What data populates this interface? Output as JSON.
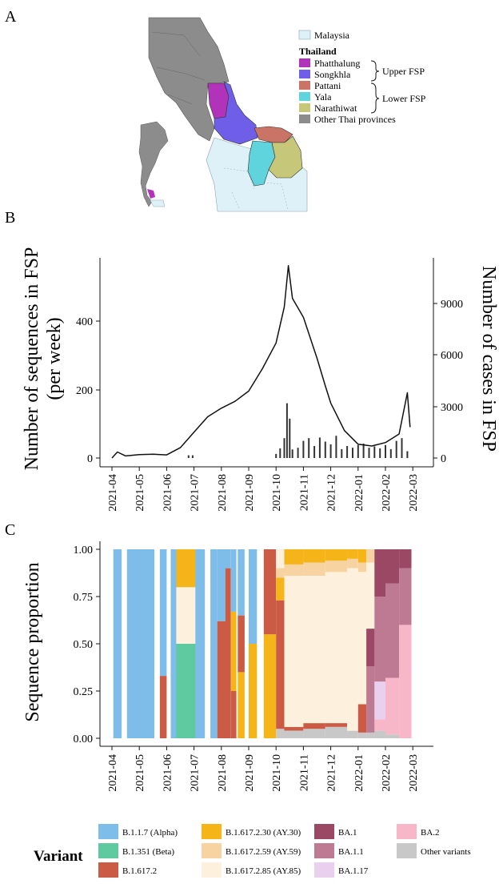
{
  "panels": {
    "a": "A",
    "b": "B",
    "c": "C"
  },
  "map": {
    "legend_malaysia": "Malaysia",
    "legend_thailand": "Thailand",
    "provinces": [
      {
        "name": "Phatthalung",
        "color": "#b133b9"
      },
      {
        "name": "Songkhla",
        "color": "#6f5ee8"
      },
      {
        "name": "Pattani",
        "color": "#c97466"
      },
      {
        "name": "Yala",
        "color": "#5fd4dc"
      },
      {
        "name": "Narathiwat",
        "color": "#c7c77a"
      },
      {
        "name": "Other Thai provinces",
        "color": "#8c8c8c"
      }
    ],
    "upper_label": "Upper FSP",
    "lower_label": "Lower FSP",
    "malaysia_color": "#dff1f8"
  },
  "chart_data": [
    {
      "type": "line+bar",
      "title": "",
      "ylabel_left": "Number of sequences in FSP (per week)",
      "ylabel_right": "Number of cases in FSP",
      "ylabel_left_lines": [
        "Number of sequences in FSP",
        "(per week)"
      ],
      "yticks_left": [
        0,
        200,
        400
      ],
      "yticks_right": [
        0,
        3000,
        6000,
        9000
      ],
      "ylim_left": [
        0,
        560
      ],
      "ylim_right": [
        0,
        11600
      ],
      "x_ticks": [
        "2021-04",
        "2021-05",
        "2021-06",
        "2021-07",
        "2021-08",
        "2021-09",
        "2021-10",
        "2021-11",
        "2021-12",
        "2022-01",
        "2022-02",
        "2022-03"
      ],
      "cases_series": {
        "name": "Daily cases",
        "points": [
          [
            0,
            0
          ],
          [
            0.2,
            350
          ],
          [
            0.5,
            120
          ],
          [
            1,
            200
          ],
          [
            1.5,
            220
          ],
          [
            2,
            180
          ],
          [
            2.5,
            600
          ],
          [
            3,
            1500
          ],
          [
            3.5,
            2400
          ],
          [
            4,
            2900
          ],
          [
            4.5,
            3300
          ],
          [
            5,
            3900
          ],
          [
            5.5,
            5200
          ],
          [
            6,
            6700
          ],
          [
            6.3,
            8800
          ],
          [
            6.45,
            11200
          ],
          [
            6.6,
            9300
          ],
          [
            7,
            8200
          ],
          [
            7.5,
            5800
          ],
          [
            7.8,
            4200
          ],
          [
            8,
            3200
          ],
          [
            8.5,
            1600
          ],
          [
            9,
            800
          ],
          [
            9.5,
            700
          ],
          [
            10,
            900
          ],
          [
            10.5,
            1400
          ],
          [
            10.8,
            3800
          ],
          [
            10.9,
            1800
          ]
        ]
      },
      "sequence_series": {
        "name": "Weekly sequences",
        "points": [
          [
            2.8,
            8
          ],
          [
            2.95,
            8
          ],
          [
            6.0,
            12
          ],
          [
            6.15,
            28
          ],
          [
            6.3,
            58
          ],
          [
            6.4,
            160
          ],
          [
            6.5,
            115
          ],
          [
            6.6,
            25
          ],
          [
            6.8,
            30
          ],
          [
            7.0,
            50
          ],
          [
            7.2,
            58
          ],
          [
            7.4,
            35
          ],
          [
            7.6,
            60
          ],
          [
            7.8,
            48
          ],
          [
            8.0,
            40
          ],
          [
            8.2,
            65
          ],
          [
            8.4,
            26
          ],
          [
            8.6,
            35
          ],
          [
            8.8,
            30
          ],
          [
            9.0,
            38
          ],
          [
            9.2,
            42
          ],
          [
            9.4,
            30
          ],
          [
            9.6,
            34
          ],
          [
            9.8,
            28
          ],
          [
            10.0,
            38
          ],
          [
            10.2,
            26
          ],
          [
            10.4,
            50
          ],
          [
            10.6,
            58
          ],
          [
            10.8,
            20
          ]
        ]
      }
    },
    {
      "type": "stacked-bar",
      "ylabel": "Sequence proportion",
      "yticks": [
        0,
        0.25,
        0.5,
        0.75,
        1.0
      ],
      "ytick_labels": [
        "0.00",
        "0.25",
        "0.50",
        "0.75",
        "1.00"
      ],
      "x_ticks": [
        "2021-04",
        "2021-05",
        "2021-06",
        "2021-07",
        "2021-08",
        "2021-09",
        "2021-10",
        "2021-11",
        "2021-12",
        "2022-01",
        "2022-02",
        "2022-03"
      ],
      "series": [
        {
          "name": "B.1.1.7 (Alpha)",
          "color": "#7ebde9"
        },
        {
          "name": "B.1.351 (Beta)",
          "color": "#5fc9a0"
        },
        {
          "name": "B.1.617.2",
          "color": "#cb5b45"
        },
        {
          "name": "B.1.617.2.30 (AY.30)",
          "color": "#f5b518"
        },
        {
          "name": "B.1.617.2.59 (AY.59)",
          "color": "#f7d3a1"
        },
        {
          "name": "B.1.617.2.85 (AY.85)",
          "color": "#fdf0dc"
        },
        {
          "name": "BA.1",
          "color": "#9b4865"
        },
        {
          "name": "BA.1.1",
          "color": "#be7a93"
        },
        {
          "name": "BA.1.17",
          "color": "#ead0ef"
        },
        {
          "name": "BA.2",
          "color": "#f7b7c9"
        },
        {
          "name": "Other variants",
          "color": "#c8c8c8"
        }
      ],
      "bars": [
        {
          "x": [
            0.05,
            0.35
          ],
          "stack": [
            [
              0,
              1
            ]
          ]
        },
        {
          "x": [
            0.55,
            1.55
          ],
          "stack": [
            [
              0,
              1
            ]
          ]
        },
        {
          "x": [
            1.75,
            2.0
          ],
          "stack": [
            [
              2,
              0.33
            ],
            [
              0,
              0.67
            ]
          ]
        },
        {
          "x": [
            2.15,
            3.4
          ],
          "stack": [
            [
              0,
              1
            ]
          ]
        },
        {
          "x": [
            2.35,
            3.05
          ],
          "stack": [
            [
              1,
              0.5
            ],
            [
              5,
              0.3
            ],
            [
              3,
              0.2
            ]
          ]
        },
        {
          "x": [
            3.6,
            3.85
          ],
          "stack": [
            [
              0,
              1
            ]
          ]
        },
        {
          "x": [
            3.85,
            4.15
          ],
          "stack": [
            [
              2,
              0.62
            ],
            [
              0,
              0.38
            ]
          ]
        },
        {
          "x": [
            4.15,
            4.35
          ],
          "stack": [
            [
              2,
              0.9
            ],
            [
              0,
              0.1
            ]
          ]
        },
        {
          "x": [
            4.35,
            4.55
          ],
          "stack": [
            [
              2,
              0.25
            ],
            [
              3,
              0.42
            ],
            [
              0,
              0.33
            ]
          ]
        },
        {
          "x": [
            4.6,
            4.85
          ],
          "stack": [
            [
              3,
              0.35
            ],
            [
              2,
              0.3
            ],
            [
              0,
              0.35
            ]
          ]
        },
        {
          "x": [
            5.0,
            5.3
          ],
          "stack": [
            [
              3,
              0.5
            ],
            [
              0,
              0.5
            ]
          ]
        },
        {
          "x": [
            5.55,
            6.0
          ],
          "stack": [
            [
              3,
              0.55
            ],
            [
              2,
              0.45
            ]
          ]
        },
        {
          "x": [
            6.0,
            6.3
          ],
          "stack": [
            [
              10,
              0.05
            ],
            [
              2,
              0.68
            ],
            [
              3,
              0.12
            ],
            [
              4,
              0.05
            ],
            [
              5,
              0.1
            ]
          ]
        },
        {
          "x": [
            6.3,
            7.0
          ],
          "stack": [
            [
              10,
              0.04
            ],
            [
              2,
              0.02
            ],
            [
              5,
              0.8
            ],
            [
              4,
              0.06
            ],
            [
              3,
              0.08
            ]
          ]
        },
        {
          "x": [
            7.0,
            7.8
          ],
          "stack": [
            [
              10,
              0.05
            ],
            [
              2,
              0.03
            ],
            [
              5,
              0.78
            ],
            [
              4,
              0.07
            ],
            [
              3,
              0.07
            ]
          ]
        },
        {
          "x": [
            7.8,
            8.6
          ],
          "stack": [
            [
              10,
              0.06
            ],
            [
              2,
              0.02
            ],
            [
              5,
              0.8
            ],
            [
              4,
              0.06
            ],
            [
              3,
              0.06
            ]
          ]
        },
        {
          "x": [
            8.6,
            9.0
          ],
          "stack": [
            [
              10,
              0.04
            ],
            [
              5,
              0.86
            ],
            [
              4,
              0.05
            ],
            [
              3,
              0.05
            ]
          ]
        },
        {
          "x": [
            9.0,
            9.3
          ],
          "stack": [
            [
              10,
              0.03
            ],
            [
              2,
              0.15
            ],
            [
              5,
              0.7
            ],
            [
              4,
              0.05
            ],
            [
              3,
              0.07
            ]
          ]
        },
        {
          "x": [
            9.3,
            9.6
          ],
          "stack": [
            [
              10,
              0.03
            ],
            [
              7,
              0.35
            ],
            [
              6,
              0.2
            ],
            [
              5,
              0.35
            ],
            [
              4,
              0.07
            ]
          ]
        },
        {
          "x": [
            9.6,
            10.0
          ],
          "stack": [
            [
              10,
              0.04
            ],
            [
              9,
              0.06
            ],
            [
              8,
              0.2
            ],
            [
              7,
              0.45
            ],
            [
              6,
              0.25
            ]
          ]
        },
        {
          "x": [
            10.0,
            10.5
          ],
          "stack": [
            [
              10,
              0.02
            ],
            [
              9,
              0.3
            ],
            [
              7,
              0.5
            ],
            [
              6,
              0.18
            ]
          ]
        },
        {
          "x": [
            10.5,
            10.95
          ],
          "stack": [
            [
              9,
              0.6
            ],
            [
              7,
              0.3
            ],
            [
              6,
              0.1
            ]
          ]
        }
      ]
    }
  ],
  "legend": {
    "title": "Variant"
  }
}
